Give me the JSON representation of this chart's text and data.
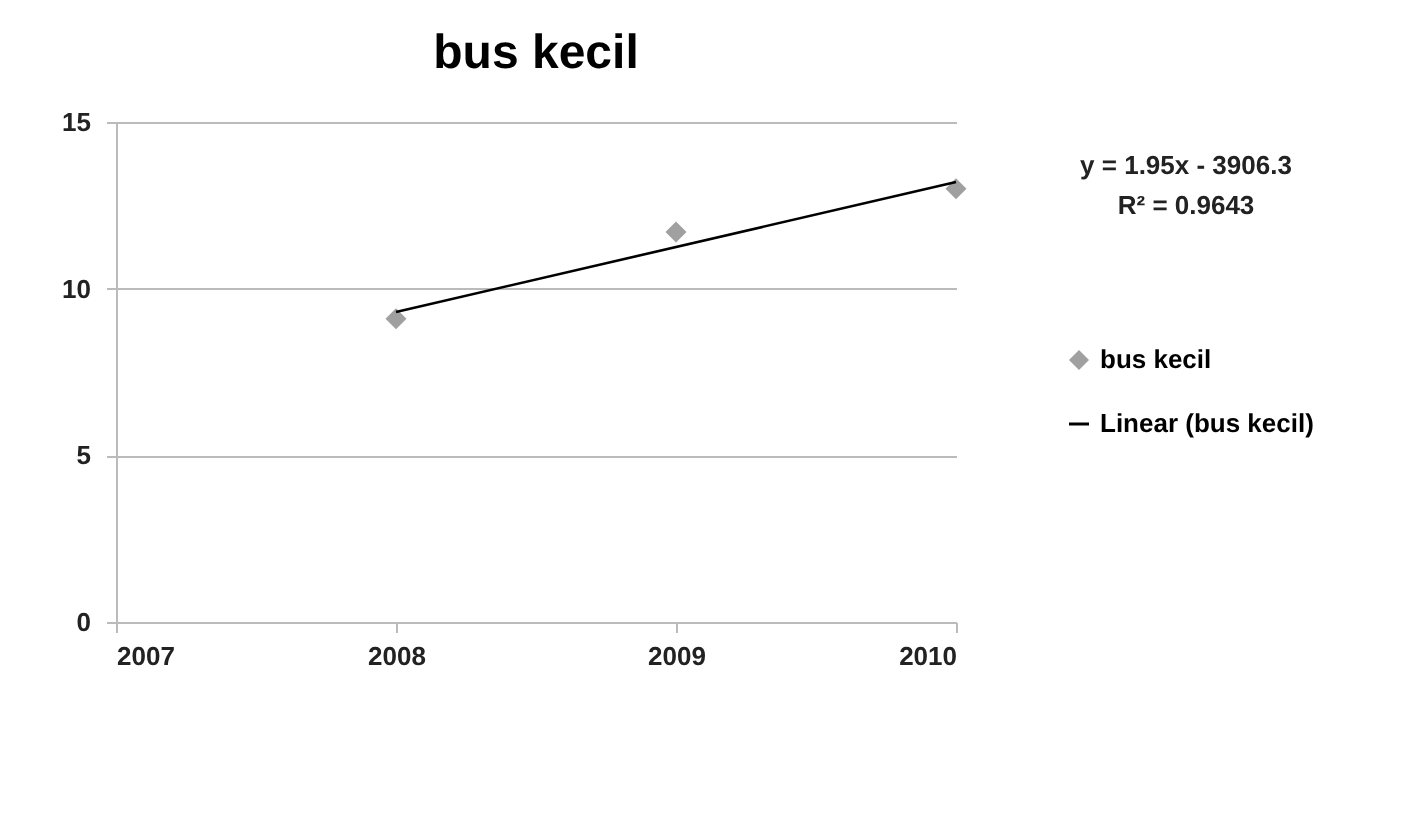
{
  "chart_data": {
    "type": "scatter",
    "title": "bus kecil",
    "x": [
      2008,
      2009,
      2010
    ],
    "series": [
      {
        "name": "bus kecil",
        "type": "scatter",
        "color": "#a0a0a0",
        "marker": "diamond",
        "values": [
          9.1,
          11.7,
          13.0
        ]
      },
      {
        "name": "Linear (bus kecil)",
        "type": "line",
        "color": "#000000",
        "line_style": "solid",
        "x": [
          2008,
          2010
        ],
        "values": [
          9.3,
          13.2
        ]
      }
    ],
    "annotations": [
      "y = 1.95x - 3906.3",
      "R² = 0.9643"
    ],
    "xlim": [
      2007,
      2010
    ],
    "xticks": [
      2007,
      2008,
      2009,
      2010
    ],
    "ylim": [
      0,
      15
    ],
    "yticks": [
      0,
      5,
      10,
      15
    ],
    "grid": "y",
    "legend": "right"
  }
}
